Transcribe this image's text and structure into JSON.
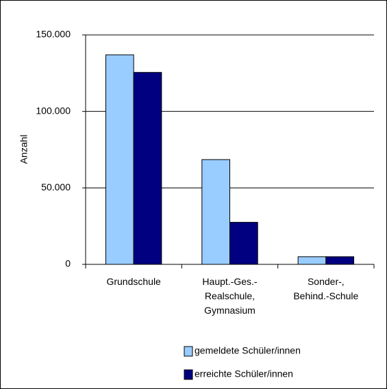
{
  "chart_data": {
    "type": "bar",
    "y_axis_label": "Anzahl",
    "categories": [
      "Grundschule",
      "Haupt.-Ges.-\nRealschule,\nGymnasium",
      "Sonder-,\nBehind.-Schule"
    ],
    "series": [
      {
        "name": "gemeldete Schüler/innen",
        "color": "#99ccff",
        "values": [
          137000,
          68500,
          5000
        ]
      },
      {
        "name": "erreichte Schüler/innen",
        "color": "#000080",
        "values": [
          125500,
          27500,
          5000
        ]
      }
    ],
    "ylim": [
      0,
      150000
    ],
    "yticks": [
      0,
      {
        "value": 50000,
        "label": "50.000"
      },
      {
        "value": 100000,
        "label": "100.000"
      },
      {
        "value": 150000,
        "label": "150.000"
      }
    ],
    "grid": true,
    "legend": "bottom"
  }
}
